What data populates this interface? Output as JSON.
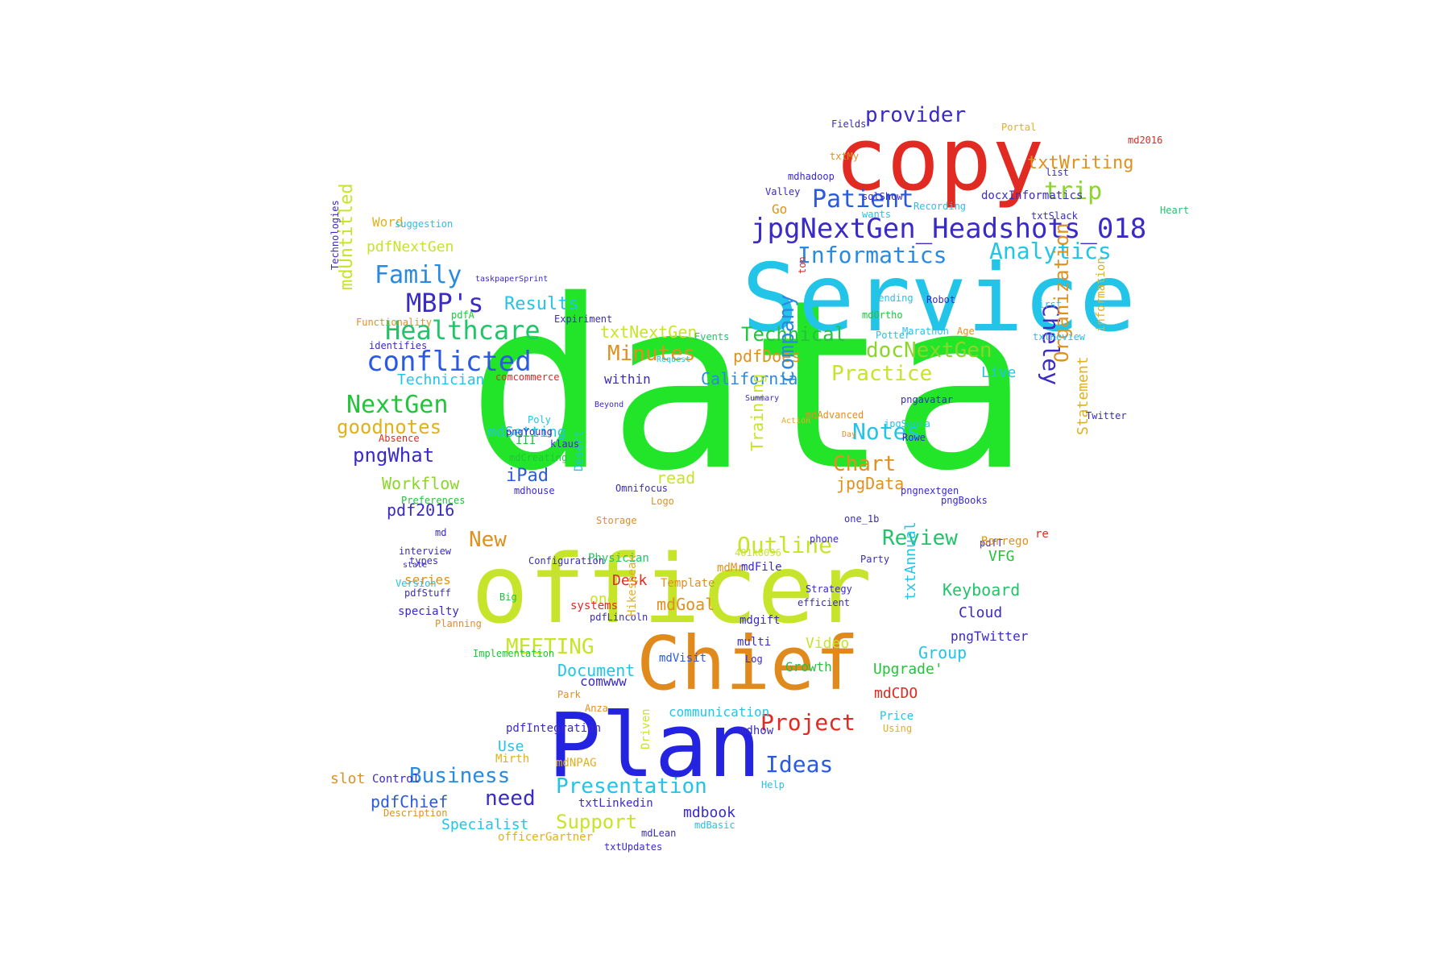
{
  "words": [
    {
      "text": "data",
      "color": "#22e52a"
    },
    {
      "text": "officer",
      "color": "#c6e52a"
    },
    {
      "text": "Service",
      "color": "#22c4e8"
    },
    {
      "text": "copy",
      "color": "#e02a22"
    },
    {
      "text": "Chief",
      "color": "#e08a1e"
    },
    {
      "text": "Plan",
      "color": "#2424e0"
    },
    {
      "text": "jpgNextGen_Headshots_018",
      "color": "#3a2ac8"
    },
    {
      "text": "Informatics",
      "color": "#2a8ae0"
    },
    {
      "text": "Analytics",
      "color": "#22c4e8"
    },
    {
      "text": "Patient",
      "color": "#2a5ae0"
    },
    {
      "text": "provider",
      "color": "#3a2ac8"
    },
    {
      "text": "trip",
      "color": "#8ad62a"
    },
    {
      "text": "txtWriting",
      "color": "#e0901e"
    },
    {
      "text": "Healthcare",
      "color": "#22c46a"
    },
    {
      "text": "MBP's",
      "color": "#3a2ac8"
    },
    {
      "text": "Family",
      "color": "#2a8ae0"
    },
    {
      "text": "Results",
      "color": "#22c4e8"
    },
    {
      "text": "conflicted",
      "color": "#2a5ae0"
    },
    {
      "text": "NextGen",
      "color": "#22c43a"
    },
    {
      "text": "goodnotes",
      "color": "#e0b01e"
    },
    {
      "text": "pngWhat",
      "color": "#3a2ac8"
    },
    {
      "text": "Workflow",
      "color": "#8ad62a"
    },
    {
      "text": "pdf2016",
      "color": "#3a2ac8"
    },
    {
      "text": "pdfNextGen",
      "color": "#c6e52a"
    },
    {
      "text": "mdUntitled",
      "color": "#c6e52a"
    },
    {
      "text": "Technician",
      "color": "#22c4e8"
    },
    {
      "text": "Minutes",
      "color": "#e0901e"
    },
    {
      "text": "txtNextGen",
      "color": "#c6e52a"
    },
    {
      "text": "Technical",
      "color": "#22c43a"
    },
    {
      "text": "docNextGen",
      "color": "#8ad62a"
    },
    {
      "text": "Practice",
      "color": "#c6e52a"
    },
    {
      "text": "Notes",
      "color": "#22c4e8"
    },
    {
      "text": "Chart",
      "color": "#e0901e"
    },
    {
      "text": "jpgData",
      "color": "#e0901e"
    },
    {
      "text": "California",
      "color": "#2a8ae0"
    },
    {
      "text": "pdfDoes",
      "color": "#e0901e"
    },
    {
      "text": "company",
      "color": "#2a8ae0"
    },
    {
      "text": "Training",
      "color": "#c6e52a"
    },
    {
      "text": "Outline",
      "color": "#c6e52a"
    },
    {
      "text": "Review",
      "color": "#22c46a"
    },
    {
      "text": "New",
      "color": "#e0901e"
    },
    {
      "text": "Cheley",
      "color": "#3a2ac8"
    },
    {
      "text": "Organization",
      "color": "#e0901e"
    },
    {
      "text": "Statement",
      "color": "#e0b01e"
    },
    {
      "text": "Live",
      "color": "#22c4e8"
    },
    {
      "text": "iPad",
      "color": "#2a5ae0"
    },
    {
      "text": "mdSetting",
      "color": "#22c4e8"
    },
    {
      "text": "read",
      "color": "#c6e52a"
    },
    {
      "text": "within",
      "color": "#3a2ac8"
    },
    {
      "text": "MEETING",
      "color": "#c6e52a"
    },
    {
      "text": "Document",
      "color": "#22c4e8"
    },
    {
      "text": "Video",
      "color": "#c6e52a"
    },
    {
      "text": "Keyboard",
      "color": "#22c46a"
    },
    {
      "text": "Cloud",
      "color": "#3a2ac8"
    },
    {
      "text": "Group",
      "color": "#22c4e8"
    },
    {
      "text": "Upgrade'",
      "color": "#22c43a"
    },
    {
      "text": "mdCDO",
      "color": "#e02a22"
    },
    {
      "text": "Project",
      "color": "#e02a22"
    },
    {
      "text": "Ideas",
      "color": "#2a5ae0"
    },
    {
      "text": "Presentation",
      "color": "#22c4e8"
    },
    {
      "text": "Business",
      "color": "#2a8ae0"
    },
    {
      "text": "need",
      "color": "#3a2ac8"
    },
    {
      "text": "pdfChief",
      "color": "#2a5ae0"
    },
    {
      "text": "Support",
      "color": "#c6e52a"
    },
    {
      "text": "Specialist",
      "color": "#22c4e8"
    },
    {
      "text": "mdbook",
      "color": "#3a2ac8"
    },
    {
      "text": "mdGoal",
      "color": "#e0901e"
    },
    {
      "text": "Desk",
      "color": "#e02a22"
    },
    {
      "text": "one",
      "color": "#c6e52a"
    },
    {
      "text": "Template",
      "color": "#e0901e"
    },
    {
      "text": "communication",
      "color": "#22c4e8"
    },
    {
      "text": "mdhow",
      "color": "#3a2ac8"
    },
    {
      "text": "comwww",
      "color": "#3a2ac8"
    },
    {
      "text": "Use",
      "color": "#22c4e8"
    },
    {
      "text": "slot",
      "color": "#e0901e"
    },
    {
      "text": "series",
      "color": "#e0901e"
    },
    {
      "text": "VFG",
      "color": "#22c43a"
    },
    {
      "text": "txtAnnual",
      "color": "#22c4e8"
    },
    {
      "text": "information",
      "color": "#e0b01e"
    },
    {
      "text": "docxInformatics",
      "color": "#3a2ac8"
    },
    {
      "text": "Recording",
      "color": "#22c4e8"
    },
    {
      "text": "Robot",
      "color": "#3a2ac8"
    },
    {
      "text": "First",
      "color": "#22c4e8"
    },
    {
      "text": "txtReview",
      "color": "#22c4e8"
    },
    {
      "text": "Marathon",
      "color": "#22c4e8"
    },
    {
      "text": "Age",
      "color": "#e0901e"
    },
    {
      "text": "Potter",
      "color": "#22c4e8"
    },
    {
      "text": "mdOrtho",
      "color": "#22c43a"
    },
    {
      "text": "sending",
      "color": "#22c4e8"
    },
    {
      "text": "Go",
      "color": "#e0901e"
    },
    {
      "text": "Valley",
      "color": "#3a2ac8"
    },
    {
      "text": "mdhadoop",
      "color": "#3a2ac8"
    },
    {
      "text": "txtMy",
      "color": "#e0901e"
    },
    {
      "text": "Fields",
      "color": "#3a2ac8"
    },
    {
      "text": "Portal",
      "color": "#e0b01e"
    },
    {
      "text": "md2016",
      "color": "#e02a22"
    },
    {
      "text": "Heart",
      "color": "#22c46a"
    },
    {
      "text": "Expiriment",
      "color": "#3a2ac8"
    },
    {
      "text": "Events",
      "color": "#22c46a"
    },
    {
      "text": "Request",
      "color": "#22c4e8"
    },
    {
      "text": "Beyond",
      "color": "#3a2ac8"
    },
    {
      "text": "Summary",
      "color": "#3a2ac8"
    },
    {
      "text": "Poly",
      "color": "#22c4e8"
    },
    {
      "text": "III",
      "color": "#22c43a"
    },
    {
      "text": "pngYoung",
      "color": "#3a2ac8"
    },
    {
      "text": "mdCreating",
      "color": "#22c43a"
    },
    {
      "text": "mdhouse",
      "color": "#3a2ac8"
    },
    {
      "text": "Desert",
      "color": "#22c4e8"
    },
    {
      "text": "Omnifocus",
      "color": "#3a2ac8"
    },
    {
      "text": "Logo",
      "color": "#e0901e"
    },
    {
      "text": "Preferences",
      "color": "#22c43a"
    },
    {
      "text": "Storage",
      "color": "#e0901e"
    },
    {
      "text": "jpgSonia",
      "color": "#22c4e8"
    },
    {
      "text": "Rowe",
      "color": "#3a2ac8"
    },
    {
      "text": "pngnextgen",
      "color": "#3a2ac8"
    },
    {
      "text": "Day",
      "color": "#e0901e"
    },
    {
      "text": "mdAdvanced",
      "color": "#e0901e"
    },
    {
      "text": "pngavatar",
      "color": "#3a2ac8"
    },
    {
      "text": "Action",
      "color": "#e0b01e"
    },
    {
      "text": "pngBooks",
      "color": "#3a2ac8"
    },
    {
      "text": "Party",
      "color": "#3a2ac8"
    },
    {
      "text": "pdfT",
      "color": "#3a2ac8"
    },
    {
      "text": "re",
      "color": "#e02a22"
    },
    {
      "text": "Physician",
      "color": "#22c46a"
    },
    {
      "text": "mdMr",
      "color": "#e0901e"
    },
    {
      "text": "mdFile",
      "color": "#3a2ac8"
    },
    {
      "text": "401k8096",
      "color": "#c6e52a"
    },
    {
      "text": "Strategy",
      "color": "#3a2ac8"
    },
    {
      "text": "efficient",
      "color": "#3a2ac8"
    },
    {
      "text": "mdgift",
      "color": "#3a2ac8"
    },
    {
      "text": "multi",
      "color": "#3a2ac8"
    },
    {
      "text": "Growth",
      "color": "#22c43a"
    },
    {
      "text": "Log",
      "color": "#3a2ac8"
    },
    {
      "text": "mdVisit",
      "color": "#2a5ae0"
    },
    {
      "text": "pngTwitter",
      "color": "#3a2ac8"
    },
    {
      "text": "Price",
      "color": "#22c4e8"
    },
    {
      "text": "Using",
      "color": "#e0b01e"
    },
    {
      "text": "Borrego",
      "color": "#e0901e"
    },
    {
      "text": "pdfLincoln",
      "color": "#3a2ac8"
    },
    {
      "text": "Hikespeak",
      "color": "#e0b01e"
    },
    {
      "text": "systems",
      "color": "#e02a22"
    },
    {
      "text": "Big",
      "color": "#22c43a"
    },
    {
      "text": "pdfStuff",
      "color": "#3a2ac8"
    },
    {
      "text": "specialty",
      "color": "#3a2ac8"
    },
    {
      "text": "Version",
      "color": "#22c4e8"
    },
    {
      "text": "types",
      "color": "#3a2ac8"
    },
    {
      "text": "Planning",
      "color": "#e0901e"
    },
    {
      "text": "Implementation",
      "color": "#22c43a"
    },
    {
      "text": "Park",
      "color": "#e0901e"
    },
    {
      "text": "Anza",
      "color": "#e0901e"
    },
    {
      "text": "pdfIntegration",
      "color": "#3a2ac8"
    },
    {
      "text": "Mirth",
      "color": "#e0b01e"
    },
    {
      "text": "mdNPAG",
      "color": "#e0b01e"
    },
    {
      "text": "Driven",
      "color": "#c6e52a"
    },
    {
      "text": "Control",
      "color": "#3a2ac8"
    },
    {
      "text": "Description",
      "color": "#e0901e"
    },
    {
      "text": "officerGartner",
      "color": "#e0b01e"
    },
    {
      "text": "txtLinkedin",
      "color": "#3a2ac8"
    },
    {
      "text": "mdLean",
      "color": "#3a2ac8"
    },
    {
      "text": "mdBasic",
      "color": "#22c4e8"
    },
    {
      "text": "txtUpdates",
      "color": "#3a2ac8"
    },
    {
      "text": "Help",
      "color": "#22c4e8"
    },
    {
      "text": "interview",
      "color": "#3a2ac8"
    },
    {
      "text": "state",
      "color": "#3a2ac8"
    },
    {
      "text": "md",
      "color": "#3a2ac8"
    },
    {
      "text": "Word",
      "color": "#e0b01e"
    },
    {
      "text": "suggestion",
      "color": "#22c4e8"
    },
    {
      "text": "Technologies",
      "color": "#3a2ac8"
    },
    {
      "text": "pdfA",
      "color": "#22c43a"
    },
    {
      "text": "Functionality",
      "color": "#e0901e"
    },
    {
      "text": "identifies",
      "color": "#3a2ac8"
    },
    {
      "text": "comcommerce",
      "color": "#e02a22"
    },
    {
      "text": "Absence",
      "color": "#e02a22"
    },
    {
      "text": "list",
      "color": "#3a2ac8"
    },
    {
      "text": "txtSlack",
      "color": "#3a2ac8"
    },
    {
      "text": "Twitter",
      "color": "#3a2ac8"
    },
    {
      "text": "taskpaperSprint",
      "color": "#3a2ac8"
    },
    {
      "text": "one_1b",
      "color": "#3a2ac8"
    },
    {
      "text": "sqlShow",
      "color": "#3a2ac8"
    },
    {
      "text": "wants",
      "color": "#22c4e8"
    },
    {
      "text": "ton",
      "color": "#e02a22"
    },
    {
      "text": "klaus",
      "color": "#3a2ac8"
    },
    {
      "text": "phone",
      "color": "#3a2ac8"
    },
    {
      "text": "Configuration",
      "color": "#3a2ac8"
    }
  ]
}
